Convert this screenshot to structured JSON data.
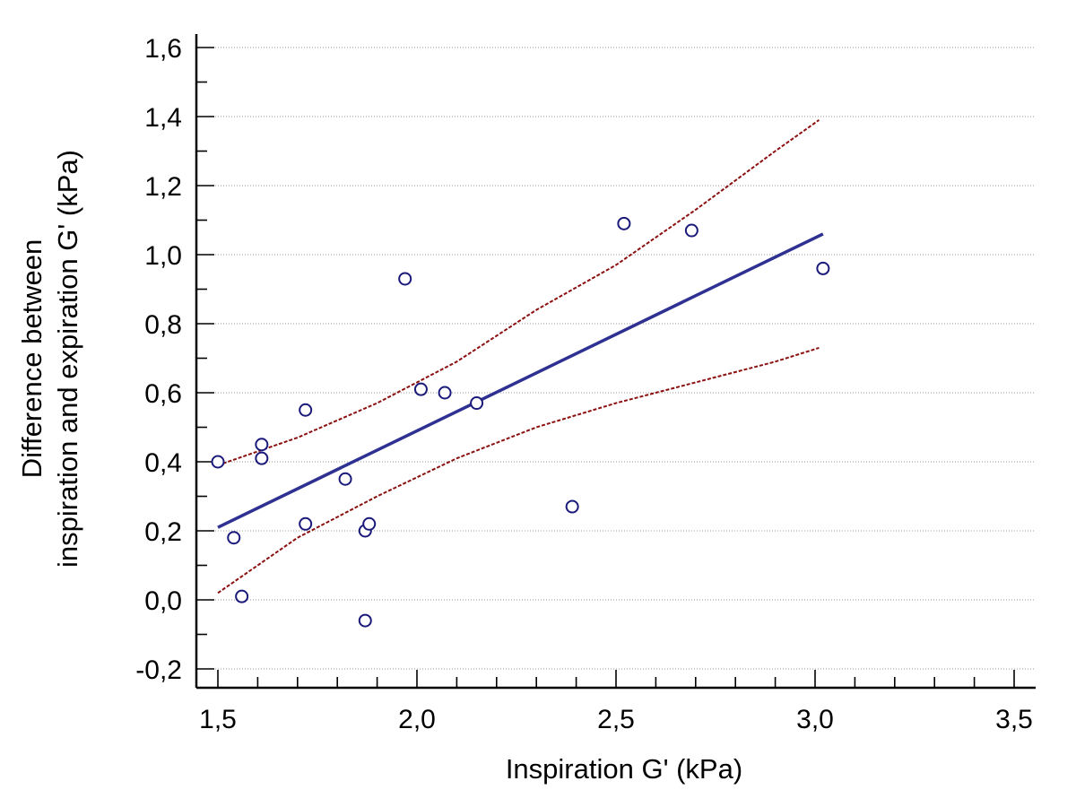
{
  "chart_data": {
    "type": "scatter",
    "title": "",
    "xlabel": "Inspiration G' (kPa)",
    "ylabel_lines": [
      "Difference between",
      "inspiration and expiration G' (kPa)"
    ],
    "xlim": [
      1.45,
      3.55
    ],
    "ylim": [
      -0.25,
      1.65
    ],
    "x_ticks": [
      1.5,
      2.0,
      2.5,
      3.0,
      3.5
    ],
    "x_tick_labels": [
      "1,5",
      "2,0",
      "2,5",
      "3,0",
      "3,5"
    ],
    "x_minor_step": 0.1,
    "y_ticks": [
      -0.2,
      0.0,
      0.2,
      0.4,
      0.6,
      0.8,
      1.0,
      1.2,
      1.4,
      1.6
    ],
    "y_tick_labels": [
      "-0,2",
      "0,0",
      "0,2",
      "0,4",
      "0,6",
      "0,8",
      "1,0",
      "1,2",
      "1,4",
      "1,6"
    ],
    "y_minor_step": 0.1,
    "grid": "horizontal dotted",
    "points": [
      {
        "x": 1.5,
        "y": 0.4
      },
      {
        "x": 1.54,
        "y": 0.18
      },
      {
        "x": 1.56,
        "y": 0.01
      },
      {
        "x": 1.61,
        "y": 0.45
      },
      {
        "x": 1.61,
        "y": 0.41
      },
      {
        "x": 1.72,
        "y": 0.55
      },
      {
        "x": 1.72,
        "y": 0.22
      },
      {
        "x": 1.82,
        "y": 0.35
      },
      {
        "x": 1.87,
        "y": 0.2
      },
      {
        "x": 1.88,
        "y": 0.22
      },
      {
        "x": 1.87,
        "y": -0.06
      },
      {
        "x": 1.97,
        "y": 0.93
      },
      {
        "x": 2.01,
        "y": 0.61
      },
      {
        "x": 2.07,
        "y": 0.6
      },
      {
        "x": 2.15,
        "y": 0.57
      },
      {
        "x": 2.39,
        "y": 0.27
      },
      {
        "x": 2.52,
        "y": 1.09
      },
      {
        "x": 2.69,
        "y": 1.07
      },
      {
        "x": 3.02,
        "y": 0.96
      }
    ],
    "regression_line": {
      "x": [
        1.5,
        3.02
      ],
      "y": [
        0.21,
        1.06
      ]
    },
    "confidence_upper": {
      "x": [
        1.5,
        1.7,
        1.9,
        2.1,
        2.3,
        2.5,
        2.7,
        2.9,
        3.01
      ],
      "y": [
        0.39,
        0.47,
        0.57,
        0.69,
        0.84,
        0.97,
        1.13,
        1.3,
        1.39
      ]
    },
    "confidence_lower": {
      "x": [
        1.5,
        1.7,
        1.9,
        2.1,
        2.3,
        2.5,
        2.7,
        2.9,
        3.01
      ],
      "y": [
        0.02,
        0.18,
        0.3,
        0.41,
        0.5,
        0.57,
        0.63,
        0.69,
        0.73
      ]
    },
    "colors": {
      "points": "#1a1a7a",
      "regression": "#2e3192",
      "confidence": "#8b1010",
      "axis": "#000000",
      "grid": "#9a9a9a"
    }
  }
}
